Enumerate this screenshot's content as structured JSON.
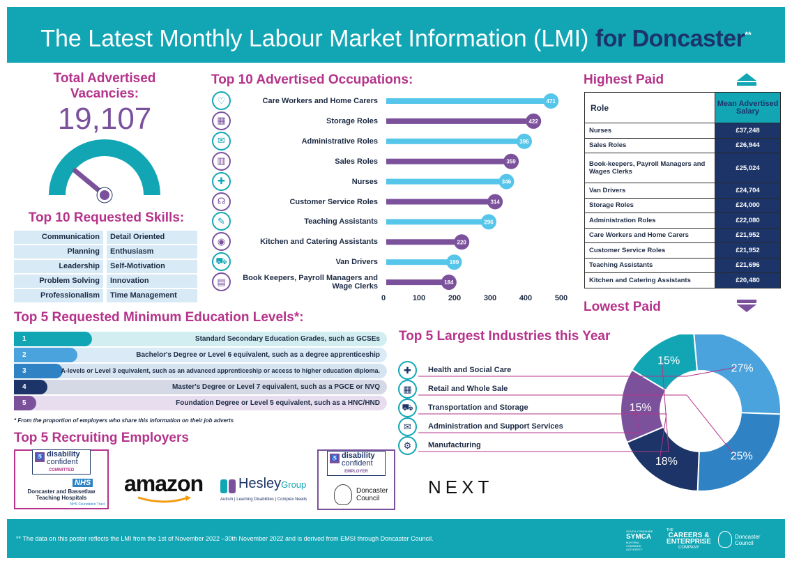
{
  "header": {
    "title_main": "The Latest Monthly Labour Market Information (LMI)",
    "title_for": "for Doncaster",
    "title_stars": "**"
  },
  "vacancies": {
    "label": "Total Advertised Vacancies:",
    "value": "19,107",
    "gauge_fraction": 0.22
  },
  "skills": {
    "title": "Top 10 Requested Skills:",
    "left": [
      "Communication",
      "Planning",
      "Leadership",
      "Problem Solving",
      "Professionalism"
    ],
    "right": [
      "Detail Oriented",
      "Enthusiasm",
      "Self-Motivation",
      "Innovation",
      "Time Management"
    ]
  },
  "occupations": {
    "title": "Top 10 Advertised Occupations:",
    "icons": [
      "care-icon",
      "storage-icon",
      "admin-icon",
      "sales-icon",
      "nurse-icon",
      "headset-icon",
      "teacher-icon",
      "kitchen-icon",
      "van-icon",
      "ledger-icon"
    ],
    "glyphs": [
      "♡",
      "▦",
      "✉",
      "▥",
      "✚",
      "☊",
      "✎",
      "◉",
      "⛟",
      "▤"
    ]
  },
  "chart_data": {
    "type": "bar",
    "orientation": "horizontal",
    "categories": [
      "Care Workers and Home Carers",
      "Storage Roles",
      "Administrative Roles",
      "Sales Roles",
      "Nurses",
      "Customer Service Roles",
      "Teaching Assistants",
      "Kitchen and Catering Assistants",
      "Van Drivers",
      "Book Keepers, Payroll Managers and Wage Clerks"
    ],
    "values": [
      471,
      422,
      396,
      359,
      346,
      314,
      296,
      220,
      199,
      184
    ],
    "xlim": [
      0,
      500
    ],
    "xticks": [
      "0",
      "100",
      "200",
      "300",
      "400",
      "500"
    ],
    "colors": [
      "#56c5ea",
      "#7b519c"
    ]
  },
  "highest_paid": {
    "title": "Highest Paid",
    "col_role": "Role",
    "col_salary": "Mean Advertised Salary",
    "rows": [
      {
        "role": "Nurses",
        "salary": "£37,248"
      },
      {
        "role": "Sales Roles",
        "salary": "£26,944"
      },
      {
        "role": "Book-keepers, Payroll Managers and Wages Clerks",
        "salary": "£25,024"
      },
      {
        "role": "Van Drivers",
        "salary": "£24,704"
      },
      {
        "role": "Storage Roles",
        "salary": "£24,000"
      },
      {
        "role": "Administration Roles",
        "salary": "£22,080"
      },
      {
        "role": "Care Workers and Home Carers",
        "salary": "£21,952"
      },
      {
        "role": "Customer Service Roles",
        "salary": "£21,952"
      },
      {
        "role": "Teaching Assistants",
        "salary": "£21,696"
      },
      {
        "role": "Kitchen and Catering Assistants",
        "salary": "£20,480"
      }
    ],
    "lowest_title": "Lowest Paid"
  },
  "education": {
    "title": "Top 5 Requested Minimum Education Levels*:",
    "items": [
      {
        "rank": "1",
        "text": "Standard Secondary Education Grades, such as GCSEs",
        "fraction": 0.21,
        "color": "#12a6b5",
        "bg": "#d3eef1"
      },
      {
        "rank": "2",
        "text": "Bachelor's Degree or Level 6 equivalent, such as a degree apprenticeship",
        "fraction": 0.17,
        "color": "#4aa3dc",
        "bg": "#dbeaf7"
      },
      {
        "rank": "3",
        "text": "A-levels or Level 3 equivalent, such as an advanced apprenticeship or access to higher education diploma.",
        "fraction": 0.13,
        "color": "#2f83c4",
        "bg": "#d6e4f1"
      },
      {
        "rank": "4",
        "text": "Master's Degree or Level 7 equivalent, such as a PGCE or NVQ",
        "fraction": 0.09,
        "color": "#1c3467",
        "bg": "#d4d9e5"
      },
      {
        "rank": "5",
        "text": "Foundation Degree or Level 5 equivalent, such as a HNC/HND",
        "fraction": 0.06,
        "color": "#7b519c",
        "bg": "#e7ddef"
      }
    ],
    "note": "* From the proportion of employers who share this information on their job adverts"
  },
  "industries": {
    "title": "Top 5 Largest Industries this Year",
    "items": [
      {
        "label": "Health and Social Care",
        "percent": 27,
        "pct_label": "27%",
        "color": "#4aa3dc",
        "icon": "health-icon",
        "glyph": "✚"
      },
      {
        "label": "Retail and Whole Sale",
        "percent": 25,
        "pct_label": "25%",
        "color": "#2f83c4",
        "icon": "shop-icon",
        "glyph": "▦"
      },
      {
        "label": "Transportation and Storage",
        "percent": 18,
        "pct_label": "18%",
        "color": "#1c3467",
        "icon": "truck-icon",
        "glyph": "⛟"
      },
      {
        "label": "Administration and Support Services",
        "percent": 15,
        "pct_label": "15%",
        "color": "#7b519c",
        "icon": "admin-support-icon",
        "glyph": "✉"
      },
      {
        "label": "Manufacturing",
        "percent": 15,
        "pct_label": "15%",
        "color": "#12a6b5",
        "icon": "factory-icon",
        "glyph": "⚙"
      }
    ]
  },
  "employers": {
    "title": "Top 5 Recruiting Employers",
    "dc_word1": "disability",
    "dc_word2": "confident",
    "dc_committed": "COMMITTED",
    "dc_employer": "EMPLOYER",
    "nhs_badge": "NHS",
    "nhs_name": "Doncaster and Bassetlaw Teaching Hospitals",
    "nhs_trust": "NHS Foundation Trust",
    "amazon": "amazon",
    "hesley_name": "Hesley",
    "hesley_group": "Group",
    "hesley_tag": "Autism | Learning Disabilities | Complex Needs",
    "council_name": "Doncaster Council",
    "next": "NEXT"
  },
  "footer": {
    "note": "** The data on this poster reflects the LMI from the 1st of November 2022 –30th November 2022 and is derived from EMSI through Doncaster Council.",
    "symca_small": "SOUTH YORKSHIRE",
    "symca": "SYMCA",
    "symca_sub": "MAYORAL COMBINED AUTHORITY",
    "careers_the": "THE",
    "careers_1": "CAREERS &",
    "careers_2": "ENTERPRISE",
    "careers_3": "COMPANY",
    "doncaster_council": "Doncaster Council"
  }
}
